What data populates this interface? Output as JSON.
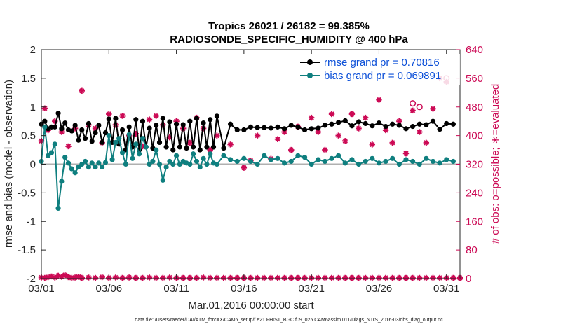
{
  "chart_data": {
    "type": "line",
    "title": "Tropics 26021 / 26182 = 99.385%",
    "subtitle": "RADIOSONDE_SPECIFIC_HUMIDITY @ 400 hPa",
    "xlabel": "Mar.01,2016 00:00:00 start",
    "ylabel_left": "rmse and bias (model - observation)",
    "ylabel_right": "# of obs: o=possible; ∗=evaluated",
    "footer": "data file: /Users/raeder/DAI/ATM_forcXX/CAM6_setup/f.e21.FHIST_BGC.f09_025.CAM6assim.011/Diags_NTrS_2016-03/obs_diag_output.nc",
    "x_tick_labels": [
      "03/01",
      "03/06",
      "03/11",
      "03/16",
      "03/21",
      "03/26",
      "03/31"
    ],
    "x_tick_days": [
      1,
      6,
      11,
      16,
      21,
      26,
      31
    ],
    "xlim": [
      1,
      32
    ],
    "ylim_left": [
      -2,
      2
    ],
    "y_ticks_left": [
      -2,
      -1.5,
      -1,
      -0.5,
      0,
      0.5,
      1,
      1.5,
      2
    ],
    "ylim_right": [
      0,
      640
    ],
    "y_ticks_right": [
      0,
      80,
      160,
      240,
      320,
      400,
      480,
      560,
      640
    ],
    "legend": [
      {
        "label": "rmse grand pr = 0.70816",
        "color": "#000000"
      },
      {
        "label": "bias grand pr = 0.069891",
        "color": "#0f7f7f"
      }
    ],
    "x": [
      1.0,
      1.25,
      1.5,
      1.75,
      2.0,
      2.25,
      2.5,
      2.75,
      3.0,
      3.25,
      3.5,
      3.75,
      4.0,
      4.25,
      4.5,
      4.75,
      5.0,
      5.25,
      5.5,
      5.75,
      6.0,
      6.25,
      6.5,
      6.75,
      7.0,
      7.25,
      7.5,
      7.75,
      8.0,
      8.25,
      8.5,
      8.75,
      9.0,
      9.25,
      9.5,
      9.75,
      10.0,
      10.25,
      10.5,
      10.75,
      11.0,
      11.25,
      11.5,
      11.75,
      12.0,
      12.25,
      12.5,
      12.75,
      13.0,
      13.25,
      13.5,
      13.75,
      14.0,
      14.5,
      15.0,
      15.5,
      16.0,
      16.5,
      17.0,
      17.5,
      18.0,
      18.5,
      19.0,
      19.5,
      20.0,
      20.5,
      21.0,
      21.5,
      22.0,
      22.5,
      23.0,
      23.5,
      24.0,
      24.5,
      25.0,
      25.5,
      26.0,
      26.5,
      27.0,
      27.5,
      28.0,
      28.5,
      29.0,
      29.5,
      30.0,
      30.5,
      31.0,
      31.5
    ],
    "series": [
      {
        "name": "rmse",
        "color": "#000000",
        "values": [
          0.7,
          0.75,
          0.62,
          0.65,
          0.65,
          0.89,
          0.62,
          0.72,
          0.6,
          0.58,
          0.68,
          0.42,
          0.6,
          0.45,
          0.71,
          0.4,
          0.55,
          0.68,
          0.38,
          0.55,
          0.79,
          0.38,
          0.8,
          0.35,
          0.6,
          0.25,
          0.65,
          0.3,
          0.78,
          0.25,
          0.75,
          0.3,
          0.63,
          0.28,
          0.68,
          0.38,
          0.8,
          0.3,
          0.74,
          0.25,
          0.7,
          0.3,
          0.69,
          0.28,
          0.75,
          0.3,
          0.8,
          0.25,
          0.72,
          0.3,
          0.78,
          0.3,
          0.84,
          0.28,
          0.7,
          0.6,
          0.6,
          0.65,
          0.64,
          0.64,
          0.63,
          0.65,
          0.62,
          0.68,
          0.65,
          0.6,
          0.62,
          0.63,
          0.68,
          0.7,
          0.73,
          0.76,
          0.67,
          0.74,
          0.71,
          0.67,
          0.72,
          0.66,
          0.7,
          0.68,
          0.62,
          0.66,
          0.7,
          0.69,
          0.75,
          0.61,
          0.71,
          0.7
        ]
      },
      {
        "name": "bias",
        "color": "#0f7f7f",
        "values": [
          0.05,
          0.65,
          0.15,
          0.2,
          0.35,
          -0.77,
          -0.3,
          0.12,
          0.02,
          -0.08,
          -0.15,
          -0.05,
          0.0,
          0.05,
          -0.05,
          0.02,
          -0.05,
          0.02,
          -0.05,
          0.03,
          0.5,
          0.08,
          0.38,
          0.45,
          0.2,
          0.0,
          0.52,
          0.1,
          0.35,
          0.18,
          0.45,
          0.3,
          0.0,
          0.05,
          0.25,
          0.0,
          -0.28,
          -0.05,
          0.05,
          0.0,
          0.15,
          0.0,
          0.05,
          0.02,
          0.0,
          0.18,
          0.05,
          -0.05,
          0.1,
          0.0,
          0.18,
          0.02,
          0.0,
          0.15,
          0.08,
          0.05,
          0.1,
          0.05,
          0.0,
          0.15,
          0.08,
          0.1,
          0.02,
          0.05,
          0.15,
          0.12,
          0.0,
          0.08,
          0.05,
          0.1,
          0.15,
          0.02,
          0.08,
          0.0,
          0.05,
          0.1,
          0.02,
          0.05,
          0.1,
          0.0,
          0.08,
          0.05,
          0.0,
          0.1,
          0.05,
          0.02,
          0.08,
          0.05
        ]
      }
    ],
    "obs_evaluated_day": [
      1,
      1.25,
      1.5,
      2,
      2.5,
      3,
      3.5,
      4,
      4.5,
      5,
      5.5,
      6,
      6.5,
      7,
      7.5,
      8,
      8.5,
      9,
      9.5,
      10,
      10.5,
      11,
      11.5,
      12,
      12.5,
      13,
      13.5,
      14,
      15,
      16,
      16.5,
      17,
      18,
      18.5,
      19,
      19.5,
      20,
      21,
      21.5,
      22,
      22.5,
      23,
      23.5,
      24,
      24.5,
      25,
      25.5,
      26,
      26.5,
      27,
      27.5,
      28,
      28.5,
      29,
      29.5,
      30,
      30.5,
      31
    ],
    "obs_evaluated": [
      385,
      476,
      415,
      440,
      410,
      370,
      420,
      525,
      430,
      420,
      380,
      460,
      430,
      455,
      400,
      405,
      370,
      445,
      455,
      430,
      395,
      440,
      420,
      380,
      450,
      420,
      360,
      400,
      375,
      310,
      330,
      400,
      335,
      390,
      410,
      360,
      425,
      450,
      410,
      360,
      460,
      400,
      385,
      460,
      420,
      450,
      375,
      500,
      415,
      380,
      440,
      350,
      470,
      410,
      380,
      475,
      560,
      550
    ],
    "obs_possible_day": [
      28.5,
      29,
      31
    ],
    "obs_possible": [
      490,
      480,
      560
    ],
    "obs_bottom_day": [
      1,
      1.25,
      1.5,
      1.75,
      2,
      2.25,
      2.5,
      2.75,
      3,
      3.25,
      3.5,
      3.75,
      4,
      4.5,
      5,
      5.5,
      6,
      6.5,
      7,
      7.5,
      8,
      8.5,
      9,
      9.5,
      10,
      10.5,
      11,
      11.5,
      12,
      12.5,
      13,
      13.5,
      14,
      14.5,
      15,
      15.5,
      16,
      16.5,
      17,
      17.5,
      18,
      18.5,
      19,
      19.5,
      20,
      20.5,
      21,
      21.5,
      22,
      22.5,
      23,
      23.5,
      24,
      24.5,
      25,
      25.5,
      26,
      26.5,
      27,
      27.5,
      28,
      28.5,
      29,
      29.5,
      30,
      30.5,
      31,
      31.5,
      32
    ],
    "obs_bottom": [
      3,
      2,
      4,
      6,
      3,
      8,
      5,
      10,
      4,
      2,
      3,
      5,
      2,
      3,
      2,
      4,
      2,
      3,
      2,
      3,
      2,
      2,
      3,
      2,
      2,
      3,
      2,
      2,
      2,
      2,
      3,
      2,
      2,
      2,
      2,
      2,
      2,
      2,
      2,
      2,
      2,
      2,
      2,
      2,
      2,
      2,
      2,
      2,
      2,
      2,
      2,
      2,
      2,
      2,
      2,
      2,
      2,
      2,
      2,
      2,
      2,
      2,
      2,
      2,
      2,
      2,
      2,
      2,
      2
    ]
  }
}
